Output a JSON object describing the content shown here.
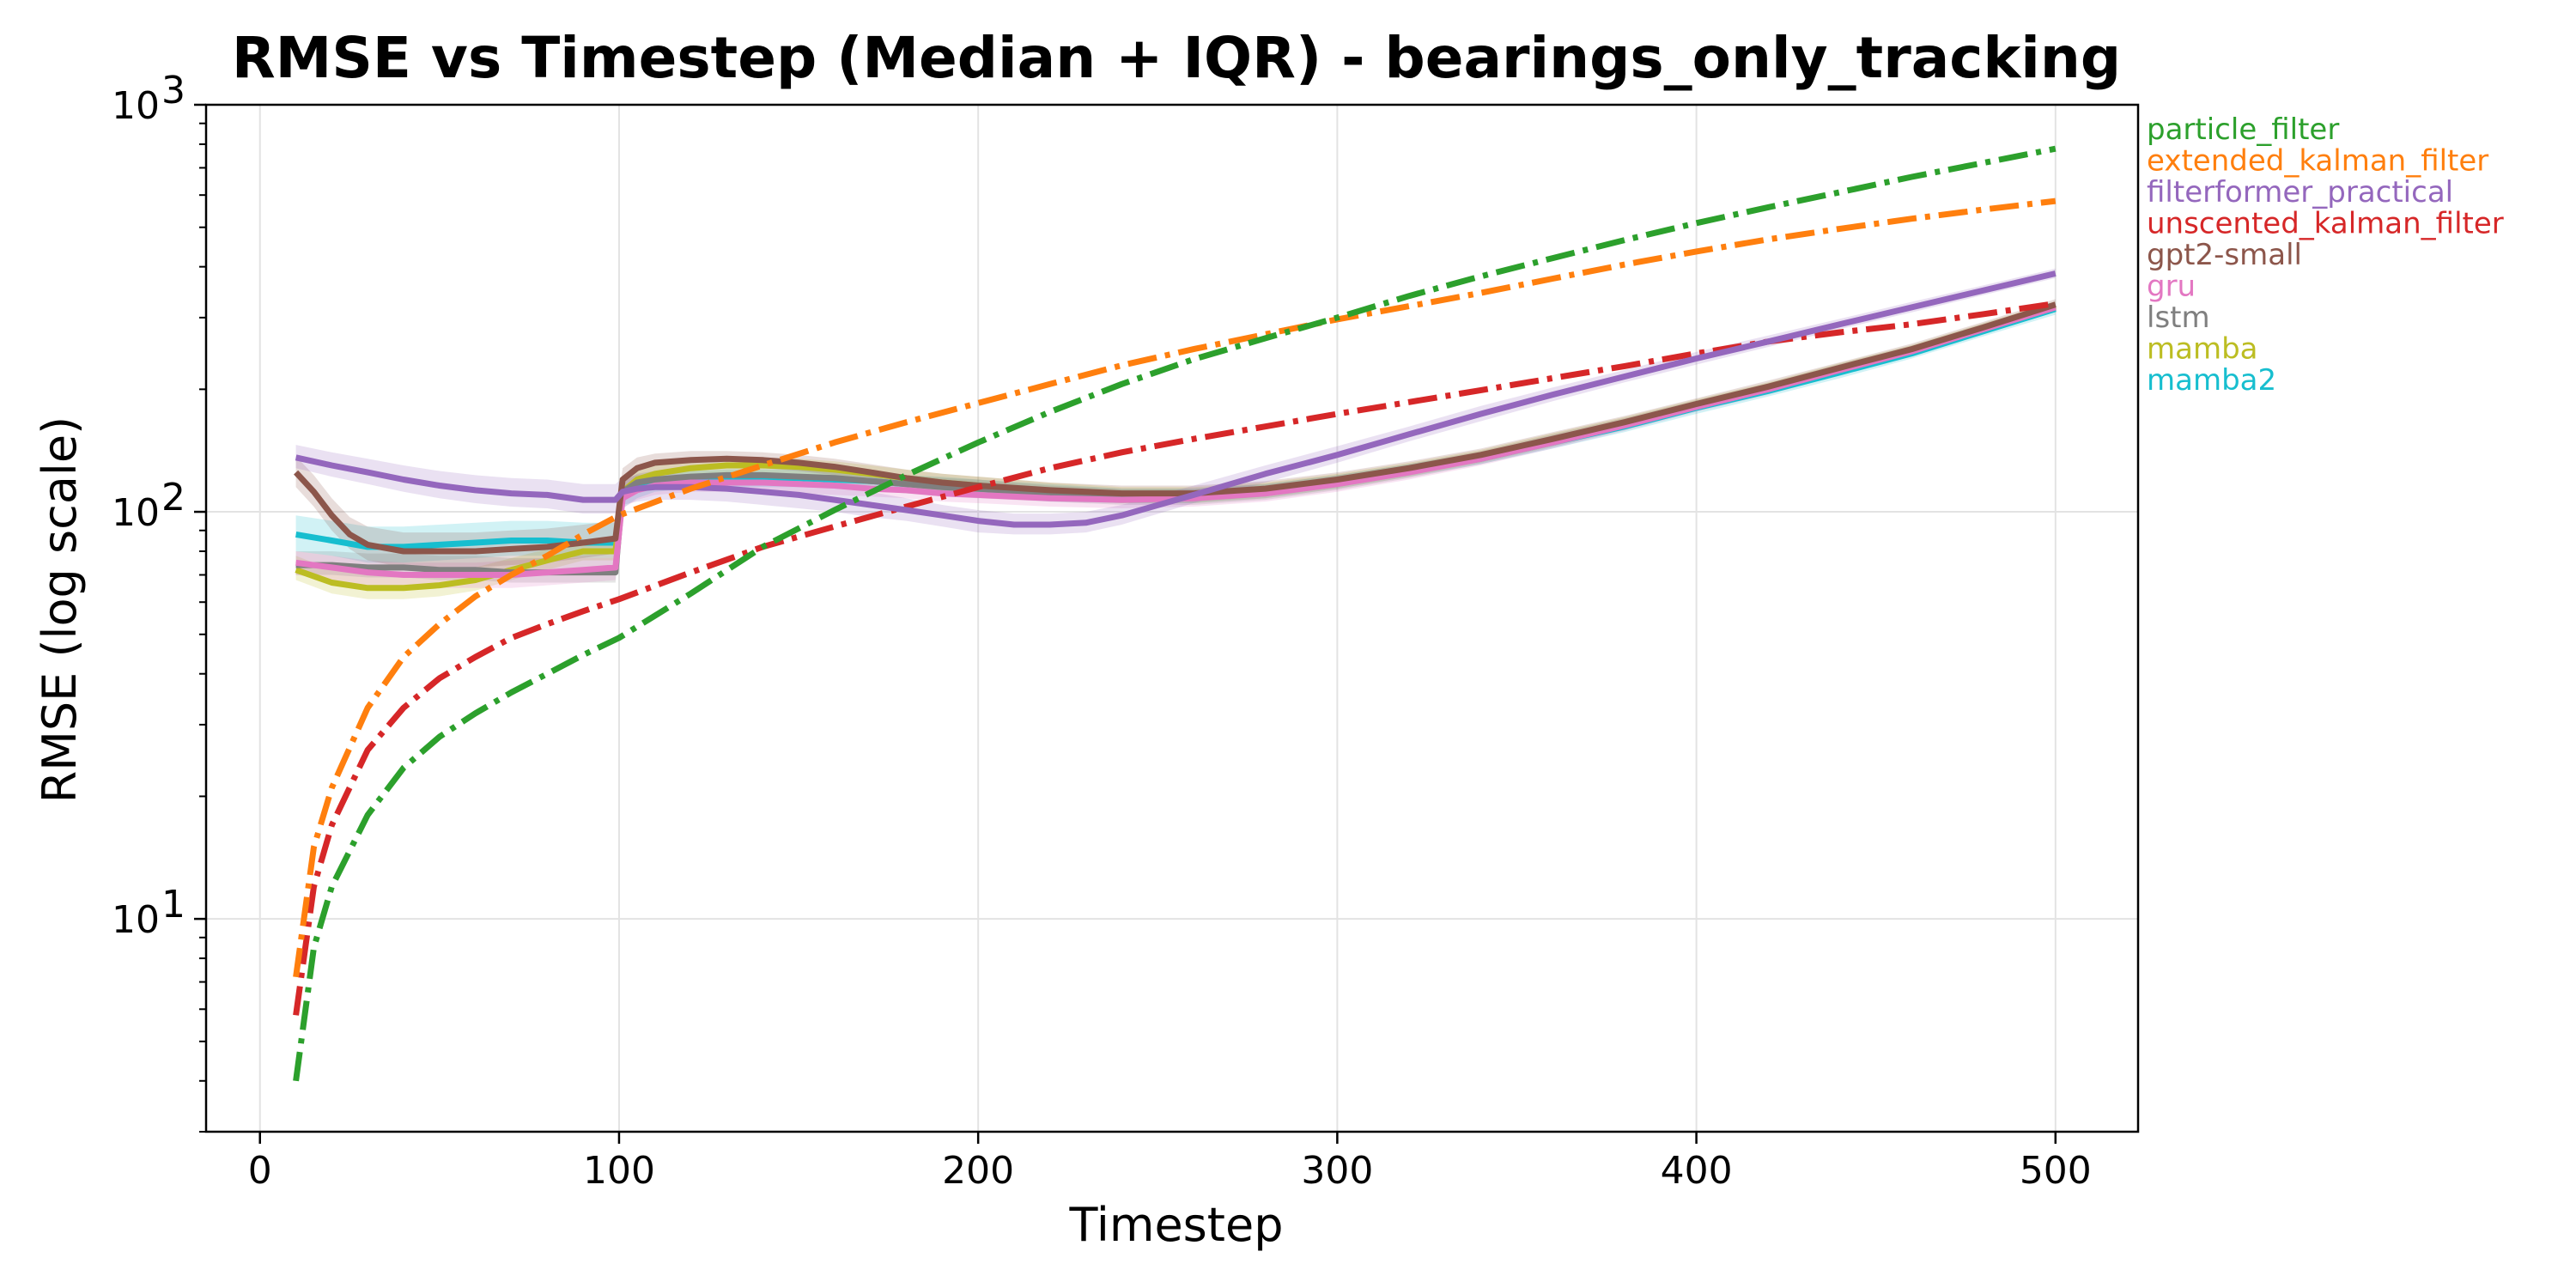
{
  "chart_data": {
    "type": "line",
    "title": "RMSE vs Timestep (Median + IQR) - bearings_only_tracking",
    "xlabel": "Timestep",
    "ylabel": "RMSE (log scale)",
    "xlim": [
      -15,
      523
    ],
    "ylim": [
      3.0,
      1000
    ],
    "yscale": "log",
    "grid": true,
    "legend_position": "outside-right",
    "x_ticks": [
      {
        "value": 0,
        "label": "0"
      },
      {
        "value": 100,
        "label": "100"
      },
      {
        "value": 200,
        "label": "200"
      },
      {
        "value": 300,
        "label": "300"
      },
      {
        "value": 400,
        "label": "400"
      },
      {
        "value": 500,
        "label": "500"
      }
    ],
    "y_ticks": [
      {
        "value": 10,
        "base": "10",
        "exp": "1"
      },
      {
        "value": 100,
        "base": "10",
        "exp": "2"
      },
      {
        "value": 1000,
        "base": "10",
        "exp": "3"
      }
    ],
    "series": [
      {
        "name": "mamba2",
        "color": "#17becf",
        "style": "solid",
        "x": [
          10,
          20,
          30,
          40,
          50,
          60,
          70,
          80,
          90,
          99,
          101,
          105,
          110,
          120,
          130,
          140,
          150,
          160,
          170,
          180,
          190,
          200,
          220,
          240,
          260,
          280,
          300,
          320,
          340,
          360,
          380,
          400,
          420,
          440,
          460,
          480,
          500
        ],
        "y": [
          88,
          85,
          82,
          82,
          83,
          84,
          85,
          85,
          84,
          84,
          108,
          115,
          118,
          120,
          121,
          121,
          121,
          120,
          119,
          117,
          116,
          114,
          111,
          109,
          109,
          112,
          118,
          126,
          135,
          148,
          162,
          180,
          198,
          220,
          245,
          278,
          315
        ],
        "band_lo": [
          80,
          78,
          75,
          75,
          76,
          77,
          78,
          78,
          77,
          77,
          102,
          108,
          112,
          114,
          115,
          115,
          115,
          114,
          113,
          112,
          111,
          109,
          106,
          105,
          105,
          108,
          114,
          122,
          131,
          143,
          157,
          174,
          192,
          213,
          238,
          270,
          305
        ],
        "band_hi": [
          98,
          95,
          92,
          92,
          93,
          94,
          95,
          95,
          94,
          94,
          114,
          121,
          124,
          126,
          127,
          127,
          127,
          126,
          125,
          123,
          122,
          120,
          117,
          114,
          114,
          117,
          123,
          131,
          140,
          154,
          168,
          186,
          205,
          228,
          253,
          287,
          326
        ]
      },
      {
        "name": "mamba",
        "color": "#bcbd22",
        "style": "solid",
        "x": [
          10,
          20,
          30,
          40,
          50,
          60,
          70,
          80,
          90,
          99,
          101,
          105,
          110,
          120,
          130,
          140,
          150,
          160,
          170,
          180,
          190,
          200,
          220,
          240,
          260,
          280,
          300,
          320,
          340,
          360,
          380,
          400,
          420,
          440,
          460,
          480,
          500
        ],
        "y": [
          72,
          67,
          65,
          65,
          66,
          68,
          72,
          76,
          80,
          80,
          112,
          120,
          124,
          128,
          130,
          130,
          129,
          127,
          124,
          121,
          118,
          116,
          112,
          110,
          110,
          113,
          119,
          127,
          137,
          150,
          165,
          183,
          202,
          225,
          250,
          283,
          320
        ],
        "band_lo": [
          68,
          63,
          61,
          61,
          62,
          64,
          68,
          72,
          76,
          76,
          106,
          114,
          118,
          122,
          124,
          124,
          123,
          121,
          118,
          115,
          112,
          110,
          107,
          105,
          105,
          108,
          114,
          122,
          132,
          145,
          160,
          178,
          196,
          219,
          244,
          276,
          312
        ],
        "band_hi": [
          78,
          72,
          70,
          70,
          71,
          73,
          77,
          81,
          85,
          85,
          118,
          126,
          130,
          134,
          136,
          136,
          135,
          133,
          130,
          127,
          124,
          122,
          118,
          115,
          115,
          118,
          124,
          132,
          142,
          156,
          171,
          189,
          208,
          232,
          257,
          291,
          329
        ]
      },
      {
        "name": "lstm",
        "color": "#7f7f7f",
        "style": "solid",
        "x": [
          10,
          20,
          30,
          40,
          50,
          60,
          70,
          80,
          90,
          99,
          101,
          105,
          110,
          120,
          130,
          140,
          150,
          160,
          170,
          180,
          190,
          200,
          220,
          240,
          260,
          280,
          300,
          320,
          340,
          360,
          380,
          400,
          420,
          440,
          460,
          480,
          500
        ],
        "y": [
          74,
          74,
          73,
          73,
          72,
          72,
          71,
          71,
          71,
          71,
          112,
          118,
          120,
          122,
          123,
          123,
          122,
          121,
          119,
          117,
          115,
          114,
          111,
          109,
          109,
          112,
          118,
          126,
          136,
          149,
          164,
          182,
          201,
          224,
          249,
          282,
          318
        ],
        "band_lo": [
          70,
          70,
          69,
          69,
          68,
          68,
          67,
          67,
          67,
          67,
          106,
          112,
          114,
          116,
          117,
          117,
          116,
          115,
          113,
          111,
          109,
          108,
          106,
          104,
          104,
          107,
          113,
          121,
          131,
          144,
          159,
          177,
          195,
          218,
          243,
          275,
          310
        ],
        "band_hi": [
          80,
          80,
          79,
          79,
          78,
          78,
          77,
          77,
          77,
          77,
          118,
          124,
          126,
          128,
          129,
          129,
          128,
          127,
          125,
          123,
          121,
          120,
          116,
          114,
          114,
          117,
          123,
          131,
          141,
          155,
          170,
          188,
          207,
          231,
          256,
          290,
          327
        ]
      },
      {
        "name": "gru",
        "color": "#e377c2",
        "style": "solid",
        "x": [
          10,
          20,
          30,
          40,
          50,
          60,
          70,
          80,
          90,
          99,
          101,
          105,
          110,
          120,
          130,
          140,
          150,
          160,
          170,
          180,
          190,
          200,
          220,
          240,
          260,
          280,
          300,
          320,
          340,
          360,
          380,
          400,
          420,
          440,
          460,
          480,
          500
        ],
        "y": [
          75,
          73,
          71,
          70,
          70,
          70,
          70,
          71,
          72,
          73,
          108,
          113,
          116,
          118,
          118,
          118,
          117,
          116,
          114,
          113,
          111,
          110,
          108,
          107,
          108,
          111,
          117,
          125,
          135,
          148,
          163,
          181,
          200,
          223,
          248,
          281,
          318
        ],
        "band_lo": [
          70,
          68,
          66,
          65,
          65,
          65,
          65,
          66,
          67,
          68,
          102,
          107,
          110,
          112,
          112,
          112,
          111,
          110,
          109,
          108,
          106,
          105,
          103,
          102,
          103,
          106,
          112,
          120,
          130,
          143,
          158,
          176,
          194,
          217,
          242,
          274,
          310
        ],
        "band_hi": [
          80,
          78,
          76,
          75,
          75,
          75,
          76,
          77,
          78,
          79,
          114,
          119,
          122,
          124,
          124,
          124,
          123,
          122,
          120,
          119,
          117,
          116,
          113,
          112,
          113,
          116,
          122,
          130,
          140,
          154,
          169,
          187,
          206,
          230,
          255,
          289,
          328
        ]
      },
      {
        "name": "gpt2-small",
        "color": "#8c564b",
        "style": "solid",
        "x": [
          10,
          15,
          20,
          25,
          30,
          40,
          50,
          60,
          70,
          80,
          90,
          99,
          101,
          105,
          110,
          120,
          130,
          140,
          150,
          160,
          170,
          180,
          190,
          200,
          220,
          240,
          260,
          280,
          300,
          320,
          340,
          360,
          380,
          400,
          420,
          440,
          460,
          480,
          500
        ],
        "y": [
          125,
          112,
          98,
          88,
          83,
          80,
          80,
          80,
          81,
          82,
          84,
          86,
          120,
          128,
          132,
          134,
          135,
          134,
          132,
          129,
          125,
          121,
          118,
          116,
          113,
          111,
          111,
          114,
          120,
          128,
          138,
          151,
          166,
          184,
          203,
          226,
          251,
          284,
          323
        ],
        "band_lo": [
          115,
          103,
          90,
          81,
          76,
          73,
          73,
          73,
          74,
          75,
          77,
          79,
          114,
          122,
          126,
          128,
          129,
          128,
          126,
          123,
          119,
          116,
          113,
          111,
          108,
          106,
          106,
          109,
          115,
          123,
          133,
          146,
          161,
          179,
          197,
          220,
          245,
          277,
          315
        ],
        "band_hi": [
          137,
          123,
          108,
          97,
          92,
          89,
          89,
          89,
          90,
          91,
          93,
          95,
          128,
          136,
          139,
          141,
          141,
          140,
          138,
          135,
          131,
          127,
          124,
          122,
          118,
          116,
          116,
          119,
          125,
          133,
          143,
          157,
          172,
          190,
          210,
          233,
          259,
          293,
          333
        ]
      },
      {
        "name": "unscented_kalman_filter",
        "color": "#d62728",
        "style": "dashdot",
        "x": [
          10,
          15,
          20,
          30,
          40,
          50,
          60,
          70,
          80,
          90,
          100,
          120,
          140,
          160,
          180,
          200,
          220,
          240,
          260,
          280,
          300,
          320,
          340,
          360,
          380,
          400,
          420,
          440,
          460,
          480,
          500
        ],
        "y": [
          5.8,
          12,
          17,
          26,
          33,
          39,
          44,
          49,
          53,
          57,
          61,
          71,
          82,
          92,
          103,
          115,
          128,
          140,
          151,
          162,
          174,
          186,
          199,
          213,
          228,
          245,
          262,
          276,
          289,
          306,
          325
        ]
      },
      {
        "name": "filterformer_practical",
        "color": "#9467bd",
        "style": "solid",
        "x": [
          10,
          20,
          30,
          40,
          50,
          60,
          70,
          80,
          90,
          99,
          101,
          105,
          110,
          120,
          130,
          140,
          150,
          160,
          170,
          180,
          190,
          200,
          210,
          220,
          230,
          240,
          260,
          280,
          300,
          320,
          340,
          360,
          380,
          400,
          420,
          440,
          460,
          480,
          500
        ],
        "y": [
          136,
          130,
          125,
          120,
          116,
          113,
          111,
          110,
          107,
          107,
          112,
          114,
          115,
          115,
          114,
          112,
          110,
          107,
          104,
          101,
          98,
          95,
          93,
          93,
          94,
          98,
          110,
          124,
          138,
          155,
          174,
          194,
          215,
          238,
          262,
          289,
          318,
          350,
          385
        ],
        "band_lo": [
          128,
          122,
          117,
          112,
          108,
          105,
          103,
          102,
          99,
          99,
          104,
          106,
          107,
          107,
          106,
          104,
          102,
          100,
          97,
          95,
          92,
          89,
          88,
          88,
          89,
          93,
          105,
          118,
          132,
          149,
          167,
          187,
          208,
          230,
          254,
          281,
          309,
          341,
          375
        ],
        "band_hi": [
          146,
          140,
          135,
          130,
          126,
          123,
          121,
          120,
          117,
          117,
          121,
          123,
          124,
          124,
          123,
          121,
          119,
          115,
          112,
          108,
          104,
          101,
          99,
          99,
          100,
          104,
          116,
          130,
          145,
          162,
          182,
          202,
          223,
          247,
          271,
          298,
          328,
          360,
          396
        ]
      },
      {
        "name": "extended_kalman_filter",
        "color": "#ff7f0e",
        "style": "dashdot",
        "x": [
          10,
          15,
          20,
          30,
          40,
          50,
          60,
          70,
          80,
          90,
          100,
          120,
          140,
          160,
          180,
          200,
          220,
          240,
          260,
          280,
          300,
          320,
          340,
          360,
          380,
          400,
          420,
          440,
          460,
          480,
          500
        ],
        "y": [
          7.2,
          15,
          21,
          33,
          44,
          53,
          62,
          70,
          78,
          88,
          98,
          114,
          130,
          148,
          166,
          185,
          206,
          229,
          251,
          273,
          297,
          320,
          345,
          374,
          405,
          436,
          467,
          496,
          525,
          553,
          580
        ]
      },
      {
        "name": "particle_filter",
        "color": "#2ca02c",
        "style": "dashdot",
        "x": [
          10,
          15,
          20,
          30,
          40,
          50,
          60,
          70,
          80,
          90,
          100,
          120,
          140,
          160,
          180,
          200,
          220,
          240,
          260,
          280,
          300,
          320,
          340,
          360,
          380,
          400,
          420,
          440,
          460,
          480,
          500
        ],
        "y": [
          4.0,
          8.5,
          12,
          18,
          23.5,
          28,
          32,
          36,
          40,
          44.5,
          49,
          63,
          82,
          101,
          123,
          148,
          176,
          206,
          237,
          267,
          300,
          339,
          379,
          420,
          465,
          512,
          560,
          610,
          665,
          720,
          780
        ]
      }
    ]
  },
  "legend": [
    {
      "label": "particle_filter",
      "color": "#2ca02c"
    },
    {
      "label": "extended_kalman_filter",
      "color": "#ff7f0e"
    },
    {
      "label": "filterformer_practical",
      "color": "#9467bd"
    },
    {
      "label": "unscented_kalman_filter",
      "color": "#d62728"
    },
    {
      "label": "gpt2-small",
      "color": "#8c564b"
    },
    {
      "label": "gru",
      "color": "#e377c2"
    },
    {
      "label": "lstm",
      "color": "#7f7f7f"
    },
    {
      "label": "mamba",
      "color": "#bcbd22"
    },
    {
      "label": "mamba2",
      "color": "#17becf"
    }
  ]
}
